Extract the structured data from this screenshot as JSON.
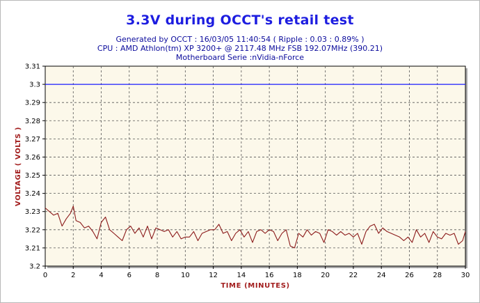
{
  "chart_data": {
    "type": "line",
    "title": "3.3V during OCCT's retail test",
    "subtitle_lines": [
      "Generated by OCCT : 16/03/05 11:40:54 ( Ripple : 0.03 : 0.89% )",
      "CPU : AMD Athlon(tm) XP 3200+ @ 2117.48 MHz FSB 192.07MHz (390.21)",
      "Motherboard Serie :nVidia-nForce"
    ],
    "xlabel": "TIME (MINUTES)",
    "ylabel": "VOLTAGE ( VOLTS )",
    "xlim": [
      0,
      30
    ],
    "ylim": [
      3.2,
      3.31
    ],
    "x_ticks": [
      0,
      2,
      4,
      6,
      8,
      10,
      12,
      14,
      16,
      18,
      20,
      22,
      24,
      26,
      28,
      30
    ],
    "y_ticks": [
      "3.2",
      "3.21",
      "3.22",
      "3.23",
      "3.24",
      "3.25",
      "3.26",
      "3.27",
      "3.28",
      "3.29",
      "3.3",
      "3.31"
    ],
    "grid": true,
    "reference_line": {
      "value": 3.3,
      "color": "#1a1aff"
    },
    "series": [
      {
        "color": "#8b1a1a",
        "x": [
          0,
          0.3,
          0.6,
          0.9,
          1.2,
          1.5,
          1.8,
          2.0,
          2.2,
          2.5,
          2.8,
          3.1,
          3.4,
          3.7,
          4.0,
          4.3,
          4.6,
          4.9,
          5.2,
          5.5,
          5.8,
          6.1,
          6.4,
          6.7,
          7.0,
          7.3,
          7.6,
          7.9,
          8.2,
          8.5,
          8.8,
          9.1,
          9.4,
          9.7,
          10.0,
          10.3,
          10.6,
          10.9,
          11.2,
          11.5,
          11.8,
          12.1,
          12.4,
          12.7,
          13.0,
          13.3,
          13.6,
          13.9,
          14.2,
          14.5,
          14.8,
          15.1,
          15.4,
          15.7,
          16.0,
          16.3,
          16.6,
          16.9,
          17.2,
          17.5,
          17.8,
          18.1,
          18.4,
          18.7,
          19.0,
          19.3,
          19.6,
          19.9,
          20.2,
          20.5,
          20.8,
          21.1,
          21.4,
          21.7,
          22.0,
          22.3,
          22.6,
          22.9,
          23.2,
          23.5,
          23.8,
          24.1,
          24.4,
          24.7,
          25.0,
          25.3,
          25.6,
          25.9,
          26.2,
          26.5,
          26.8,
          27.1,
          27.4,
          27.7,
          28.0,
          28.3,
          28.6,
          28.9,
          29.2,
          29.5,
          29.8,
          30.0
        ],
        "values": [
          3.232,
          3.23,
          3.228,
          3.229,
          3.222,
          3.226,
          3.229,
          3.233,
          3.225,
          3.224,
          3.221,
          3.222,
          3.219,
          3.215,
          3.224,
          3.227,
          3.22,
          3.218,
          3.216,
          3.214,
          3.22,
          3.222,
          3.218,
          3.221,
          3.216,
          3.222,
          3.215,
          3.221,
          3.22,
          3.219,
          3.22,
          3.216,
          3.219,
          3.215,
          3.216,
          3.216,
          3.219,
          3.214,
          3.218,
          3.219,
          3.22,
          3.22,
          3.223,
          3.218,
          3.219,
          3.214,
          3.218,
          3.22,
          3.216,
          3.219,
          3.213,
          3.219,
          3.22,
          3.218,
          3.22,
          3.219,
          3.214,
          3.218,
          3.22,
          3.211,
          3.21,
          3.218,
          3.216,
          3.22,
          3.217,
          3.219,
          3.218,
          3.213,
          3.22,
          3.219,
          3.217,
          3.219,
          3.217,
          3.218,
          3.216,
          3.218,
          3.212,
          3.219,
          3.222,
          3.223,
          3.218,
          3.221,
          3.219,
          3.218,
          3.217,
          3.216,
          3.214,
          3.216,
          3.213,
          3.22,
          3.216,
          3.218,
          3.213,
          3.219,
          3.216,
          3.215,
          3.218,
          3.217,
          3.218,
          3.212,
          3.214,
          3.219
        ]
      }
    ]
  }
}
